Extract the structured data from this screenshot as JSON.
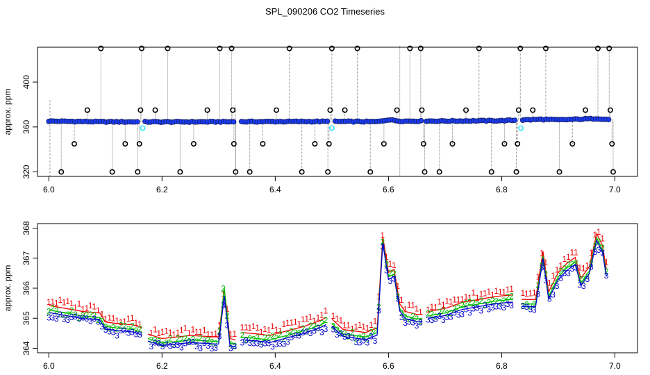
{
  "title": "SPL_090206  CO2 Timeseries",
  "chart_data": [
    {
      "type": "scatter",
      "ylabel": "approx. ppm",
      "xlim": [
        5.98,
        7.04
      ],
      "ylim": [
        316,
        431
      ],
      "xticks": [
        6.0,
        6.2,
        6.4,
        6.6,
        6.8,
        7.0
      ],
      "xtick_labels": [
        "6.0",
        "6.2",
        "6.4",
        "6.6",
        "6.8",
        "7.0"
      ],
      "yticks": [
        320,
        360,
        400
      ],
      "ytick_labels": [
        "320",
        "360",
        "400"
      ],
      "baseline": [
        [
          6.0,
          365.2
        ],
        [
          6.1,
          364.6
        ],
        [
          6.2,
          364.5
        ],
        [
          6.3,
          364.6
        ],
        [
          6.4,
          364.8
        ],
        [
          6.5,
          364.9
        ],
        [
          6.58,
          364.7
        ],
        [
          6.6,
          366.5
        ],
        [
          6.62,
          365.2
        ],
        [
          6.7,
          365.3
        ],
        [
          6.8,
          365.6
        ],
        [
          6.87,
          366.8
        ],
        [
          6.9,
          366.3
        ],
        [
          6.97,
          367.5
        ],
        [
          6.99,
          366.5
        ]
      ],
      "gaps": [
        [
          6.16,
          6.168
        ],
        [
          6.33,
          6.338
        ],
        [
          6.495,
          6.503
        ],
        [
          6.658,
          6.666
        ],
        [
          6.826,
          6.834
        ]
      ],
      "outliers": [
        {
          "x": 6.022,
          "y": 320
        },
        {
          "x": 6.045,
          "y": 345
        },
        {
          "x": 6.068,
          "y": 375
        },
        {
          "x": 6.092,
          "y": 430
        },
        {
          "x": 6.112,
          "y": 320
        },
        {
          "x": 6.135,
          "y": 345
        },
        {
          "x": 6.157,
          "y": 320
        },
        {
          "x": 6.16,
          "y": 345
        },
        {
          "x": 6.162,
          "y": 375
        },
        {
          "x": 6.164,
          "y": 430
        },
        {
          "x": 6.188,
          "y": 375
        },
        {
          "x": 6.21,
          "y": 430
        },
        {
          "x": 6.232,
          "y": 320
        },
        {
          "x": 6.256,
          "y": 345
        },
        {
          "x": 6.28,
          "y": 375
        },
        {
          "x": 6.302,
          "y": 430
        },
        {
          "x": 6.323,
          "y": 430
        },
        {
          "x": 6.325,
          "y": 375
        },
        {
          "x": 6.327,
          "y": 345
        },
        {
          "x": 6.33,
          "y": 320
        },
        {
          "x": 6.355,
          "y": 320
        },
        {
          "x": 6.378,
          "y": 345
        },
        {
          "x": 6.402,
          "y": 375
        },
        {
          "x": 6.425,
          "y": 430
        },
        {
          "x": 6.447,
          "y": 320
        },
        {
          "x": 6.47,
          "y": 345
        },
        {
          "x": 6.493,
          "y": 320
        },
        {
          "x": 6.495,
          "y": 345
        },
        {
          "x": 6.497,
          "y": 375
        },
        {
          "x": 6.5,
          "y": 430
        },
        {
          "x": 6.523,
          "y": 375
        },
        {
          "x": 6.545,
          "y": 430
        },
        {
          "x": 6.568,
          "y": 320
        },
        {
          "x": 6.592,
          "y": 345
        },
        {
          "x": 6.615,
          "y": 375
        },
        {
          "x": 6.638,
          "y": 430
        },
        {
          "x": 6.657,
          "y": 430
        },
        {
          "x": 6.659,
          "y": 375
        },
        {
          "x": 6.662,
          "y": 345
        },
        {
          "x": 6.664,
          "y": 320
        },
        {
          "x": 6.69,
          "y": 320
        },
        {
          "x": 6.713,
          "y": 345
        },
        {
          "x": 6.737,
          "y": 375
        },
        {
          "x": 6.76,
          "y": 430
        },
        {
          "x": 6.782,
          "y": 320
        },
        {
          "x": 6.805,
          "y": 345
        },
        {
          "x": 6.826,
          "y": 320
        },
        {
          "x": 6.828,
          "y": 345
        },
        {
          "x": 6.83,
          "y": 375
        },
        {
          "x": 6.833,
          "y": 430
        },
        {
          "x": 6.855,
          "y": 375
        },
        {
          "x": 6.878,
          "y": 430
        },
        {
          "x": 6.902,
          "y": 320
        },
        {
          "x": 6.925,
          "y": 345
        },
        {
          "x": 6.948,
          "y": 375
        },
        {
          "x": 6.97,
          "y": 430
        },
        {
          "x": 6.99,
          "y": 430
        },
        {
          "x": 6.992,
          "y": 375
        },
        {
          "x": 6.995,
          "y": 345
        },
        {
          "x": 6.997,
          "y": 320
        }
      ],
      "cyan_points": [
        {
          "x": 6.166,
          "y": 359
        },
        {
          "x": 6.5,
          "y": 359
        },
        {
          "x": 6.834,
          "y": 359
        }
      ],
      "colors": {
        "outlier": "#000000",
        "baseline_fill": "#1a3cff",
        "baseline_edge": "#17236e",
        "cyan": "#33e0ff",
        "trace": "#888888"
      }
    },
    {
      "type": "line",
      "ylabel": "approx. ppm",
      "xlim": [
        5.98,
        7.04
      ],
      "ylim": [
        363.85,
        368.15
      ],
      "xticks": [
        6.0,
        6.2,
        6.4,
        6.6,
        6.8,
        7.0
      ],
      "xtick_labels": [
        "6.0",
        "6.2",
        "6.4",
        "6.6",
        "6.8",
        "7.0"
      ],
      "yticks": [
        364,
        365,
        366,
        367,
        368
      ],
      "ytick_labels": [
        "364",
        "365",
        "366",
        "367",
        "368"
      ],
      "series": [
        {
          "marker": "1",
          "color": "#ee0000",
          "offset": 0.35,
          "sparse_spikes": false
        },
        {
          "marker": "2",
          "color": "#00bb00",
          "offset": 0.05,
          "sparse_spikes": true
        },
        {
          "marker": "3",
          "color": "#0000cc",
          "offset": -0.12,
          "sparse_spikes": false
        }
      ],
      "knots": [
        [
          6.0,
          365.25
        ],
        [
          6.03,
          365.15
        ],
        [
          6.06,
          365.05
        ],
        [
          6.09,
          365.0
        ],
        [
          6.1,
          364.7
        ],
        [
          6.12,
          364.65
        ],
        [
          6.15,
          364.6
        ],
        [
          6.165,
          364.5
        ],
        [
          6.175,
          364.3
        ],
        [
          6.2,
          364.15
        ],
        [
          6.25,
          364.25
        ],
        [
          6.3,
          364.2
        ],
        [
          6.31,
          365.8
        ],
        [
          6.32,
          364.15
        ],
        [
          6.33,
          364.1
        ],
        [
          6.34,
          364.35
        ],
        [
          6.37,
          364.3
        ],
        [
          6.39,
          364.25
        ],
        [
          6.42,
          364.4
        ],
        [
          6.45,
          364.55
        ],
        [
          6.48,
          364.75
        ],
        [
          6.49,
          364.85
        ],
        [
          6.5,
          364.8
        ],
        [
          6.52,
          364.45
        ],
        [
          6.56,
          364.35
        ],
        [
          6.58,
          364.5
        ],
        [
          6.59,
          367.55
        ],
        [
          6.6,
          366.35
        ],
        [
          6.61,
          366.45
        ],
        [
          6.62,
          365.3
        ],
        [
          6.63,
          365.05
        ],
        [
          6.65,
          364.95
        ],
        [
          6.66,
          364.95
        ],
        [
          6.67,
          365.05
        ],
        [
          6.7,
          365.15
        ],
        [
          6.73,
          365.35
        ],
        [
          6.76,
          365.45
        ],
        [
          6.79,
          365.55
        ],
        [
          6.82,
          365.6
        ],
        [
          6.835,
          365.45
        ],
        [
          6.86,
          365.45
        ],
        [
          6.873,
          367.05
        ],
        [
          6.883,
          365.7
        ],
        [
          6.9,
          366.35
        ],
        [
          6.915,
          366.65
        ],
        [
          6.93,
          366.85
        ],
        [
          6.94,
          366.15
        ],
        [
          6.955,
          366.55
        ],
        [
          6.968,
          367.65
        ],
        [
          6.978,
          367.25
        ],
        [
          6.985,
          366.45
        ]
      ],
      "gaps": [
        [
          6.165,
          6.175
        ],
        [
          6.33,
          6.34
        ],
        [
          6.49,
          6.5
        ],
        [
          6.66,
          6.67
        ],
        [
          6.82,
          6.835
        ]
      ]
    }
  ]
}
